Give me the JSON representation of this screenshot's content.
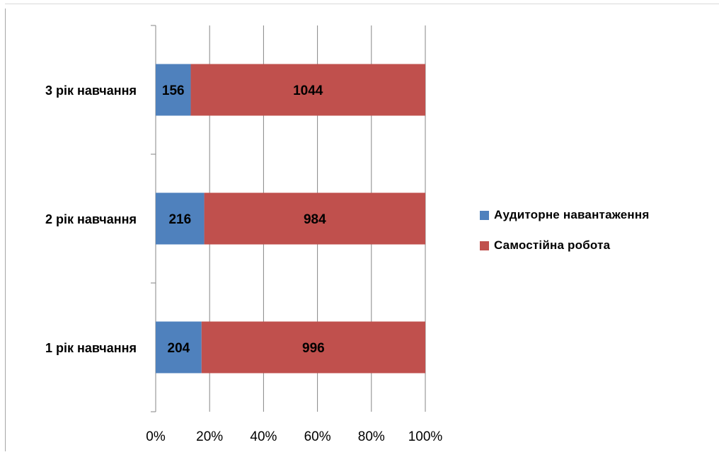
{
  "chart_data": {
    "type": "bar",
    "orientation": "horizontal",
    "stacked": "percent",
    "categories": [
      "1 рік навчання",
      "2 рік навчання",
      "3 рік навчання"
    ],
    "series": [
      {
        "name": "Аудиторне навантаження",
        "values": [
          204,
          216,
          156
        ],
        "color": "#4f81bd"
      },
      {
        "name": "Самостійна  робота",
        "values": [
          996,
          984,
          1044
        ],
        "color": "#c0504d"
      }
    ],
    "x_ticks": [
      "0%",
      "20%",
      "40%",
      "60%",
      "80%",
      "100%"
    ],
    "xlim": [
      0,
      100
    ],
    "grid": true,
    "legend_position": "right",
    "data_labels": true,
    "title": "",
    "xlabel": "",
    "ylabel": ""
  }
}
